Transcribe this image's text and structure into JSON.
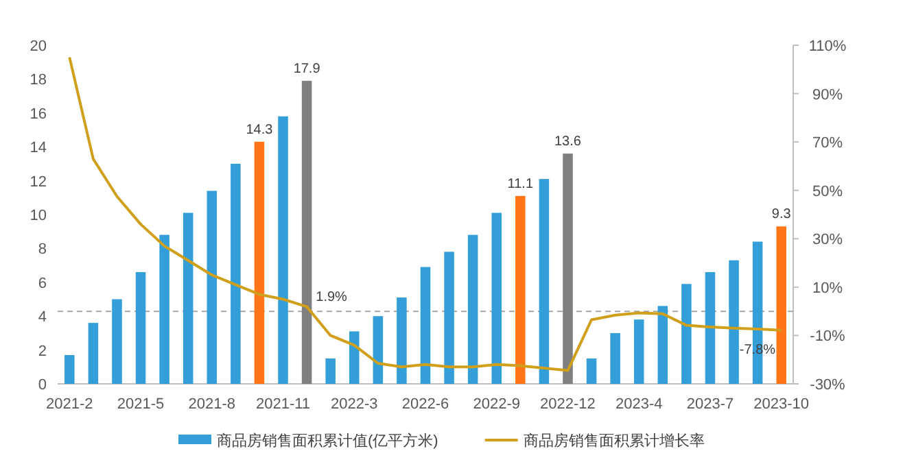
{
  "chart_data": {
    "type": "bar",
    "categories": [
      "2021-2",
      null,
      null,
      "2021-5",
      null,
      null,
      "2021-8",
      null,
      null,
      "2021-11",
      null,
      null,
      "2022-3",
      null,
      null,
      "2022-6",
      null,
      null,
      "2022-9",
      null,
      null,
      "2022-12",
      null,
      null,
      "2023-4",
      null,
      null,
      "2023-7",
      null,
      null,
      "2023-10"
    ],
    "series": [
      {
        "name": "商品房销售面积累计值(亿平方米)",
        "color": "#339ed8",
        "colors": [
          "#339ed8",
          "#339ed8",
          "#339ed8",
          "#339ed8",
          "#339ed8",
          "#339ed8",
          "#339ed8",
          "#339ed8",
          "#ff7619",
          "#339ed8",
          "#7f7f7f",
          "#339ed8",
          "#339ed8",
          "#339ed8",
          "#339ed8",
          "#339ed8",
          "#339ed8",
          "#339ed8",
          "#339ed8",
          "#ff7619",
          "#339ed8",
          "#7f7f7f",
          "#339ed8",
          "#339ed8",
          "#339ed8",
          "#339ed8",
          "#339ed8",
          "#339ed8",
          "#339ed8",
          "#339ed8",
          "#ff7619"
        ],
        "values": [
          1.7,
          3.6,
          5.0,
          6.6,
          8.8,
          10.1,
          11.4,
          13.0,
          14.3,
          15.8,
          17.9,
          1.5,
          3.1,
          4.0,
          5.1,
          6.9,
          7.8,
          8.8,
          10.1,
          11.1,
          12.1,
          13.6,
          1.5,
          3.0,
          3.8,
          4.6,
          5.9,
          6.6,
          7.3,
          8.4,
          9.3
        ],
        "value_labels": [
          null,
          null,
          null,
          null,
          null,
          null,
          null,
          null,
          "14.3",
          null,
          "17.9",
          null,
          null,
          null,
          null,
          null,
          null,
          null,
          null,
          "11.1",
          null,
          "13.6",
          null,
          null,
          null,
          null,
          null,
          null,
          null,
          null,
          "9.3"
        ]
      },
      {
        "name": "商品房销售面积累计增长率",
        "type": "line",
        "axis": "y2",
        "color": "#d09f1c",
        "values": [
          105,
          63,
          47.5,
          36,
          27,
          21,
          15,
          11,
          7,
          5,
          1.9,
          -10,
          -14,
          -21.5,
          -23,
          -22,
          -23,
          -23,
          -22,
          -22.5,
          -23.5,
          -24.5,
          -3.5,
          -1.6,
          -0.7,
          -1,
          -5.8,
          -6.5,
          -7,
          -7.3,
          -7.8
        ],
        "value_labels": [
          null,
          null,
          null,
          null,
          null,
          null,
          null,
          null,
          null,
          null,
          "1.9%",
          null,
          null,
          null,
          null,
          null,
          null,
          null,
          null,
          null,
          null,
          null,
          null,
          null,
          null,
          null,
          null,
          null,
          null,
          null,
          "-7.8%"
        ]
      }
    ],
    "ylim": [
      0,
      20
    ],
    "yticks": [
      0,
      2,
      4,
      6,
      8,
      10,
      12,
      14,
      16,
      18,
      20
    ],
    "y2lim": [
      -30,
      110
    ],
    "y2ticks": [
      {
        "value": -30,
        "label": "-30%"
      },
      {
        "value": -10,
        "label": "-10%"
      },
      {
        "value": 10,
        "label": "10%"
      },
      {
        "value": 30,
        "label": "30%"
      },
      {
        "value": 50,
        "label": "50%"
      },
      {
        "value": 70,
        "label": "70%"
      },
      {
        "value": 90,
        "label": "90%"
      },
      {
        "value": 110,
        "label": "110%"
      }
    ],
    "ref_lines": [
      {
        "axis": "y2",
        "value": 0,
        "color": "#a6a6a6",
        "line_style": "dashed"
      }
    ],
    "marker": "none",
    "grid": false,
    "legend": "bottom"
  }
}
